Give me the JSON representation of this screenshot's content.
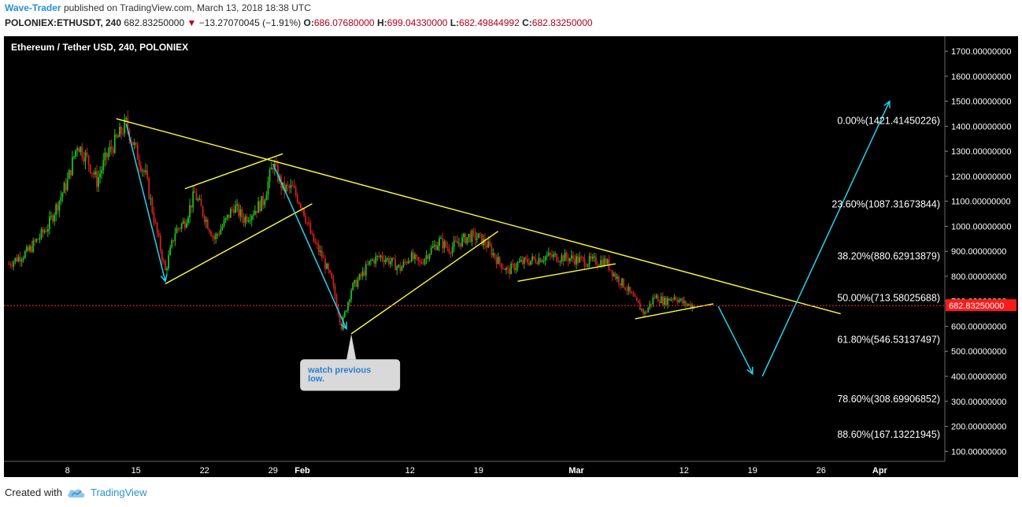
{
  "header": {
    "author": "Wave-Trader",
    "published_text": "published on TradingView.com, March 13, 2018 18:38 UTC",
    "symbol": "POLONIEX:ETHUSDT, 240",
    "last_price": "682.83250000",
    "change_icon": "down-triangle-icon",
    "change": "−13.27070045 (−1.91%)",
    "open_label": "O:",
    "open": "686.07680000",
    "high_label": "H:",
    "high": "699.04330000",
    "low_label": "L:",
    "low": "682.49844992",
    "close_label": "C:",
    "close": "682.83250000"
  },
  "footer": {
    "created_with": "Created with",
    "brand": "TradingView",
    "logo_icon": "tradingview-cloud-icon"
  },
  "chart_data": {
    "type": "candlestick",
    "title": "Ethereum / Tether USD, 240, POLONIEX",
    "ylim": [
      60,
      1760
    ],
    "y_ticks": [
      "1700.00000000",
      "1600.00000000",
      "1500.00000000",
      "1400.00000000",
      "1300.00000000",
      "1200.00000000",
      "1100.00000000",
      "1000.00000000",
      "900.00000000",
      "800.00000000",
      "700.00000000",
      "600.00000000",
      "500.00000000",
      "400.00000000",
      "300.00000000",
      "200.00000000",
      "100.00000000"
    ],
    "y_tick_values": [
      1700,
      1600,
      1500,
      1400,
      1300,
      1200,
      1100,
      1000,
      900,
      800,
      700,
      600,
      500,
      400,
      300,
      200,
      100
    ],
    "x_ticks": [
      {
        "label": "8",
        "day": -24
      },
      {
        "label": "15",
        "day": -17
      },
      {
        "label": "22",
        "day": -10
      },
      {
        "label": "29",
        "day": -3
      },
      {
        "label": "Feb",
        "day": 0
      },
      {
        "label": "12",
        "day": 11
      },
      {
        "label": "19",
        "day": 18
      },
      {
        "label": "Mar",
        "day": 28
      },
      {
        "label": "12",
        "day": 39
      },
      {
        "label": "19",
        "day": 46
      },
      {
        "label": "26",
        "day": 53
      },
      {
        "label": "Apr",
        "day": 59
      }
    ],
    "current_price": 682.8325,
    "current_price_label": "682.83250000",
    "colors": {
      "background": "#000000",
      "up": "#20c020",
      "down": "#d02020",
      "trendline": "#ffff33",
      "arrow": "#22d3ee",
      "text": "#ffffff",
      "price_tag": "#ff1a1a"
    },
    "price_path": [
      {
        "day": -30,
        "price": 850
      },
      {
        "day": -28,
        "price": 900
      },
      {
        "day": -26,
        "price": 1000
      },
      {
        "day": -25,
        "price": 1090
      },
      {
        "day": -24,
        "price": 1180
      },
      {
        "day": -23,
        "price": 1330
      },
      {
        "day": -22,
        "price": 1270
      },
      {
        "day": -21,
        "price": 1180
      },
      {
        "day": -20,
        "price": 1280
      },
      {
        "day": -18,
        "price": 1410
      },
      {
        "day": -17,
        "price": 1300
      },
      {
        "day": -16,
        "price": 1200
      },
      {
        "day": -15,
        "price": 1000
      },
      {
        "day": -14,
        "price": 820
      },
      {
        "day": -13,
        "price": 980
      },
      {
        "day": -12,
        "price": 1020
      },
      {
        "day": -11,
        "price": 1130
      },
      {
        "day": -10,
        "price": 1040
      },
      {
        "day": -9,
        "price": 950
      },
      {
        "day": -8,
        "price": 1010
      },
      {
        "day": -7,
        "price": 1080
      },
      {
        "day": -6,
        "price": 1030
      },
      {
        "day": -5,
        "price": 1060
      },
      {
        "day": -4,
        "price": 1100
      },
      {
        "day": -3,
        "price": 1250
      },
      {
        "day": -2,
        "price": 1150
      },
      {
        "day": -1,
        "price": 1150
      },
      {
        "day": 0,
        "price": 1080
      },
      {
        "day": 1,
        "price": 950
      },
      {
        "day": 2,
        "price": 880
      },
      {
        "day": 3,
        "price": 780
      },
      {
        "day": 4,
        "price": 600
      },
      {
        "day": 5,
        "price": 750
      },
      {
        "day": 6,
        "price": 800
      },
      {
        "day": 7,
        "price": 860
      },
      {
        "day": 8,
        "price": 880
      },
      {
        "day": 9,
        "price": 860
      },
      {
        "day": 10,
        "price": 830
      },
      {
        "day": 11,
        "price": 880
      },
      {
        "day": 12,
        "price": 850
      },
      {
        "day": 13,
        "price": 900
      },
      {
        "day": 14,
        "price": 940
      },
      {
        "day": 15,
        "price": 910
      },
      {
        "day": 16,
        "price": 935
      },
      {
        "day": 17,
        "price": 960
      },
      {
        "day": 18,
        "price": 955
      },
      {
        "day": 19,
        "price": 920
      },
      {
        "day": 20,
        "price": 860
      },
      {
        "day": 21,
        "price": 820
      },
      {
        "day": 22,
        "price": 850
      },
      {
        "day": 23,
        "price": 860
      },
      {
        "day": 25,
        "price": 880
      },
      {
        "day": 27,
        "price": 875
      },
      {
        "day": 29,
        "price": 860
      },
      {
        "day": 31,
        "price": 860
      },
      {
        "day": 32,
        "price": 800
      },
      {
        "day": 33,
        "price": 760
      },
      {
        "day": 34,
        "price": 700
      },
      {
        "day": 35,
        "price": 650
      },
      {
        "day": 36,
        "price": 720
      },
      {
        "day": 37,
        "price": 700
      },
      {
        "day": 38,
        "price": 720
      },
      {
        "day": 39,
        "price": 690
      },
      {
        "day": 40,
        "price": 682
      }
    ],
    "fib_levels": [
      {
        "label": "0.00%(1421.41450226)",
        "value": 1421.4145
      },
      {
        "label": "23.60%(1087.31673844)",
        "value": 1087.3167
      },
      {
        "label": "38.20%(880.62913879)",
        "value": 880.6291
      },
      {
        "label": "50.00%(713.58025688)",
        "value": 713.5803
      },
      {
        "label": "61.80%(546.53137497)",
        "value": 546.5314
      },
      {
        "label": "78.60%(308.69906852)",
        "value": 308.6991
      },
      {
        "label": "88.60%(167.13221945)",
        "value": 167.1322
      }
    ],
    "trendlines": [
      {
        "from": {
          "day": -19,
          "price": 1430
        },
        "to": {
          "day": 55,
          "price": 650
        }
      },
      {
        "from": {
          "day": -12,
          "price": 1150
        },
        "to": {
          "day": -2,
          "price": 1290
        }
      },
      {
        "from": {
          "day": -14,
          "price": 770
        },
        "to": {
          "day": 1,
          "price": 1090
        }
      },
      {
        "from": {
          "day": 5,
          "price": 570
        },
        "to": {
          "day": 20,
          "price": 980
        }
      },
      {
        "from": {
          "day": 22,
          "price": 780
        },
        "to": {
          "day": 32,
          "price": 850
        }
      },
      {
        "from": {
          "day": 34,
          "price": 630
        },
        "to": {
          "day": 42,
          "price": 690
        }
      }
    ],
    "arrows": [
      {
        "from": {
          "day": -18,
          "price": 1410
        },
        "to": {
          "day": -14,
          "price": 780
        }
      },
      {
        "from": {
          "day": -3,
          "price": 1250
        },
        "to": {
          "day": 4.5,
          "price": 590
        }
      },
      {
        "from": {
          "day": 42.5,
          "price": 680
        },
        "to": {
          "day": 46,
          "price": 410
        }
      },
      {
        "from": {
          "day": 47,
          "price": 400
        },
        "to": {
          "day": 60,
          "price": 1500
        }
      }
    ],
    "callout": {
      "text": "watch previous low.",
      "anchor": {
        "day": 5,
        "price": 575
      }
    }
  }
}
